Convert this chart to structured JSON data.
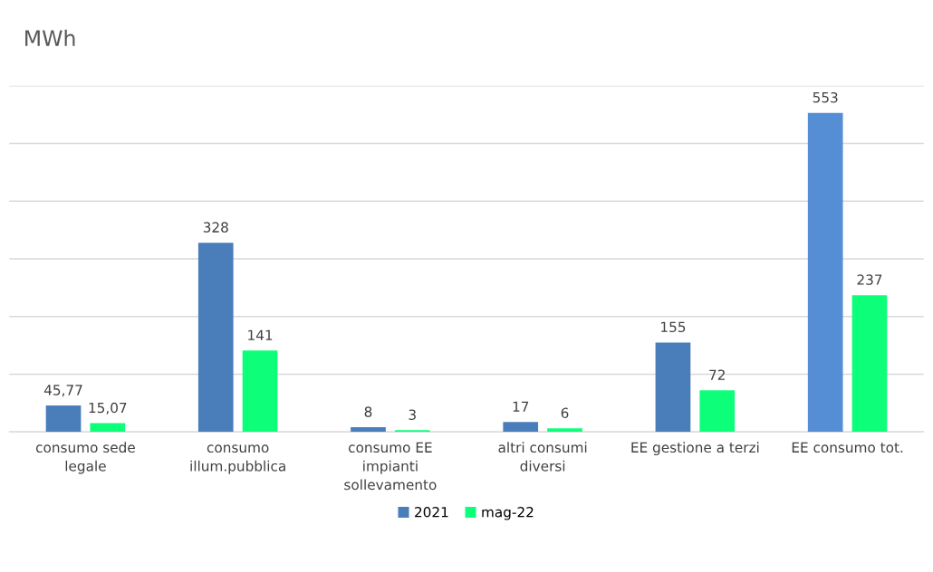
{
  "chart_data": {
    "type": "bar",
    "title": "MWh",
    "categories": [
      "consumo sede\nlegale",
      "consumo\nillum.pubblica",
      "consumo EE\nimpianti\nsollevamento",
      "altri consumi\ndiversi",
      "EE gestione a terzi",
      "EE consumo tot."
    ],
    "series": [
      {
        "name": "2021",
        "color": "#4a7ebb",
        "colors": [
          "#4a7ebb",
          "#4a7ebb",
          "#4a7ebb",
          "#4a7ebb",
          "#4a7ebb",
          "#558ed5"
        ],
        "values": [
          45.77,
          328,
          8,
          17,
          155,
          553
        ],
        "value_labels": [
          "45,77",
          "328",
          "8",
          "17",
          "155",
          "553"
        ]
      },
      {
        "name": "mag-22",
        "color": "#0dff7a",
        "values": [
          15.07,
          141,
          3,
          6,
          72,
          237
        ],
        "value_labels": [
          "15,07",
          "141",
          "3",
          "6",
          "72",
          "237"
        ]
      }
    ],
    "ylim": [
      0,
      600
    ],
    "yticks": [
      {
        "value": 0,
        "label": null
      },
      {
        "value": 100,
        "label": null
      },
      {
        "value": 200,
        "label": null
      },
      {
        "value": 300,
        "label": null
      },
      {
        "value": 400,
        "label": null
      },
      {
        "value": 500,
        "label": null
      },
      {
        "value": 600,
        "label": null
      }
    ],
    "tick_labels": "x",
    "grid": "y",
    "legend": "bottom"
  }
}
